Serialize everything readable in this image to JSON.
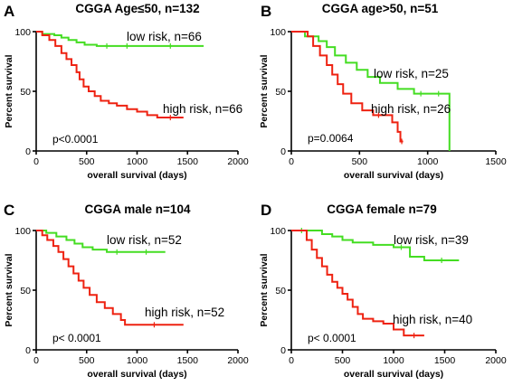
{
  "chart_data": [
    {
      "type": "line",
      "panel": "A",
      "title": "CGGA Age≤50, n=132",
      "xlabel": "overall survival (days)",
      "ylabel": "Percent survival",
      "xlim": [
        0,
        2000
      ],
      "ylim": [
        0,
        100
      ],
      "xticks": [
        0,
        500,
        1000,
        1500,
        2000
      ],
      "yticks": [
        0,
        50,
        100
      ],
      "pvalue": "p<0.0001",
      "series": [
        {
          "name": "low risk, n=66",
          "label": "low risk, n=66",
          "color": "#44dd22",
          "x": [
            0,
            60,
            180,
            250,
            320,
            400,
            480,
            600,
            800,
            1000,
            1660
          ],
          "y": [
            100,
            98,
            97,
            95,
            93,
            91,
            89,
            88,
            88,
            88,
            88
          ]
        },
        {
          "name": "high risk, n=66",
          "label": "high risk, n=66",
          "color": "#ee2211",
          "x": [
            0,
            60,
            130,
            190,
            250,
            300,
            350,
            400,
            430,
            470,
            520,
            580,
            640,
            720,
            800,
            900,
            1000,
            1100,
            1200,
            1460
          ],
          "y": [
            100,
            97,
            93,
            88,
            82,
            77,
            72,
            66,
            60,
            54,
            50,
            46,
            42,
            40,
            38,
            35,
            33,
            30,
            28,
            28
          ]
        }
      ]
    },
    {
      "type": "line",
      "panel": "B",
      "title": "CGGA age>50, n=51",
      "xlabel": "overall survival (days)",
      "ylabel": "Percent survival",
      "xlim": [
        0,
        1500
      ],
      "ylim": [
        0,
        100
      ],
      "xticks": [
        0,
        500,
        1000,
        1500
      ],
      "yticks": [
        0,
        50,
        100
      ],
      "pvalue": "p=0.0064",
      "series": [
        {
          "name": "low risk, n=25",
          "label": "low risk, n=25",
          "color": "#44dd22",
          "x": [
            0,
            100,
            200,
            260,
            320,
            400,
            480,
            560,
            650,
            780,
            900,
            1000,
            1160,
            1160
          ],
          "y": [
            100,
            96,
            92,
            87,
            80,
            74,
            68,
            62,
            57,
            52,
            48,
            48,
            48,
            0
          ]
        },
        {
          "name": "high risk, n=26",
          "label": "high risk, n=26",
          "color": "#ee2211",
          "x": [
            0,
            120,
            160,
            210,
            260,
            300,
            340,
            380,
            440,
            520,
            600,
            680,
            740,
            780,
            800,
            820
          ],
          "y": [
            100,
            96,
            88,
            80,
            72,
            64,
            56,
            48,
            40,
            34,
            30,
            30,
            24,
            16,
            8,
            8
          ]
        }
      ]
    },
    {
      "type": "line",
      "panel": "C",
      "title": "CGGA male n=104",
      "xlabel": "overall survival (days)",
      "ylabel": "Percent survival",
      "xlim": [
        0,
        2000
      ],
      "ylim": [
        0,
        100
      ],
      "xticks": [
        0,
        500,
        1000,
        1500,
        2000
      ],
      "yticks": [
        0,
        50,
        100
      ],
      "pvalue": "p< 0.0001",
      "series": [
        {
          "name": "low risk, n=52",
          "label": "low risk, n=52",
          "color": "#44dd22",
          "x": [
            0,
            100,
            200,
            300,
            380,
            460,
            560,
            700,
            900,
            1280
          ],
          "y": [
            100,
            98,
            95,
            92,
            89,
            86,
            84,
            82,
            82,
            82
          ]
        },
        {
          "name": "high risk, n=52",
          "label": "high risk, n=52",
          "color": "#ee2211",
          "x": [
            0,
            60,
            110,
            170,
            220,
            270,
            320,
            370,
            420,
            470,
            530,
            600,
            680,
            760,
            840,
            880,
            1460
          ],
          "y": [
            100,
            96,
            92,
            87,
            82,
            76,
            70,
            64,
            58,
            52,
            46,
            40,
            35,
            30,
            25,
            21,
            21
          ]
        }
      ]
    },
    {
      "type": "line",
      "panel": "D",
      "title": "CGGA female n=79",
      "xlabel": "overall survival (days)",
      "ylabel": "Percent survival",
      "xlim": [
        0,
        2000
      ],
      "ylim": [
        0,
        100
      ],
      "xticks": [
        0,
        500,
        1000,
        1500,
        2000
      ],
      "yticks": [
        0,
        50,
        100
      ],
      "pvalue": "p< 0.0001",
      "series": [
        {
          "name": "low risk, n=39",
          "label": "low risk, n=39",
          "color": "#44dd22",
          "x": [
            0,
            200,
            300,
            400,
            500,
            600,
            800,
            1000,
            1150,
            1160,
            1300,
            1640
          ],
          "y": [
            100,
            100,
            97,
            95,
            92,
            90,
            88,
            86,
            86,
            78,
            75,
            75
          ]
        },
        {
          "name": "high risk, n=40",
          "label": "high risk, n=40",
          "color": "#ee2211",
          "x": [
            0,
            150,
            200,
            250,
            300,
            350,
            400,
            450,
            500,
            550,
            600,
            650,
            700,
            800,
            900,
            1000,
            1100,
            1300
          ],
          "y": [
            100,
            92,
            84,
            77,
            70,
            63,
            57,
            52,
            47,
            42,
            36,
            30,
            26,
            24,
            22,
            17,
            12,
            12
          ]
        }
      ]
    }
  ]
}
